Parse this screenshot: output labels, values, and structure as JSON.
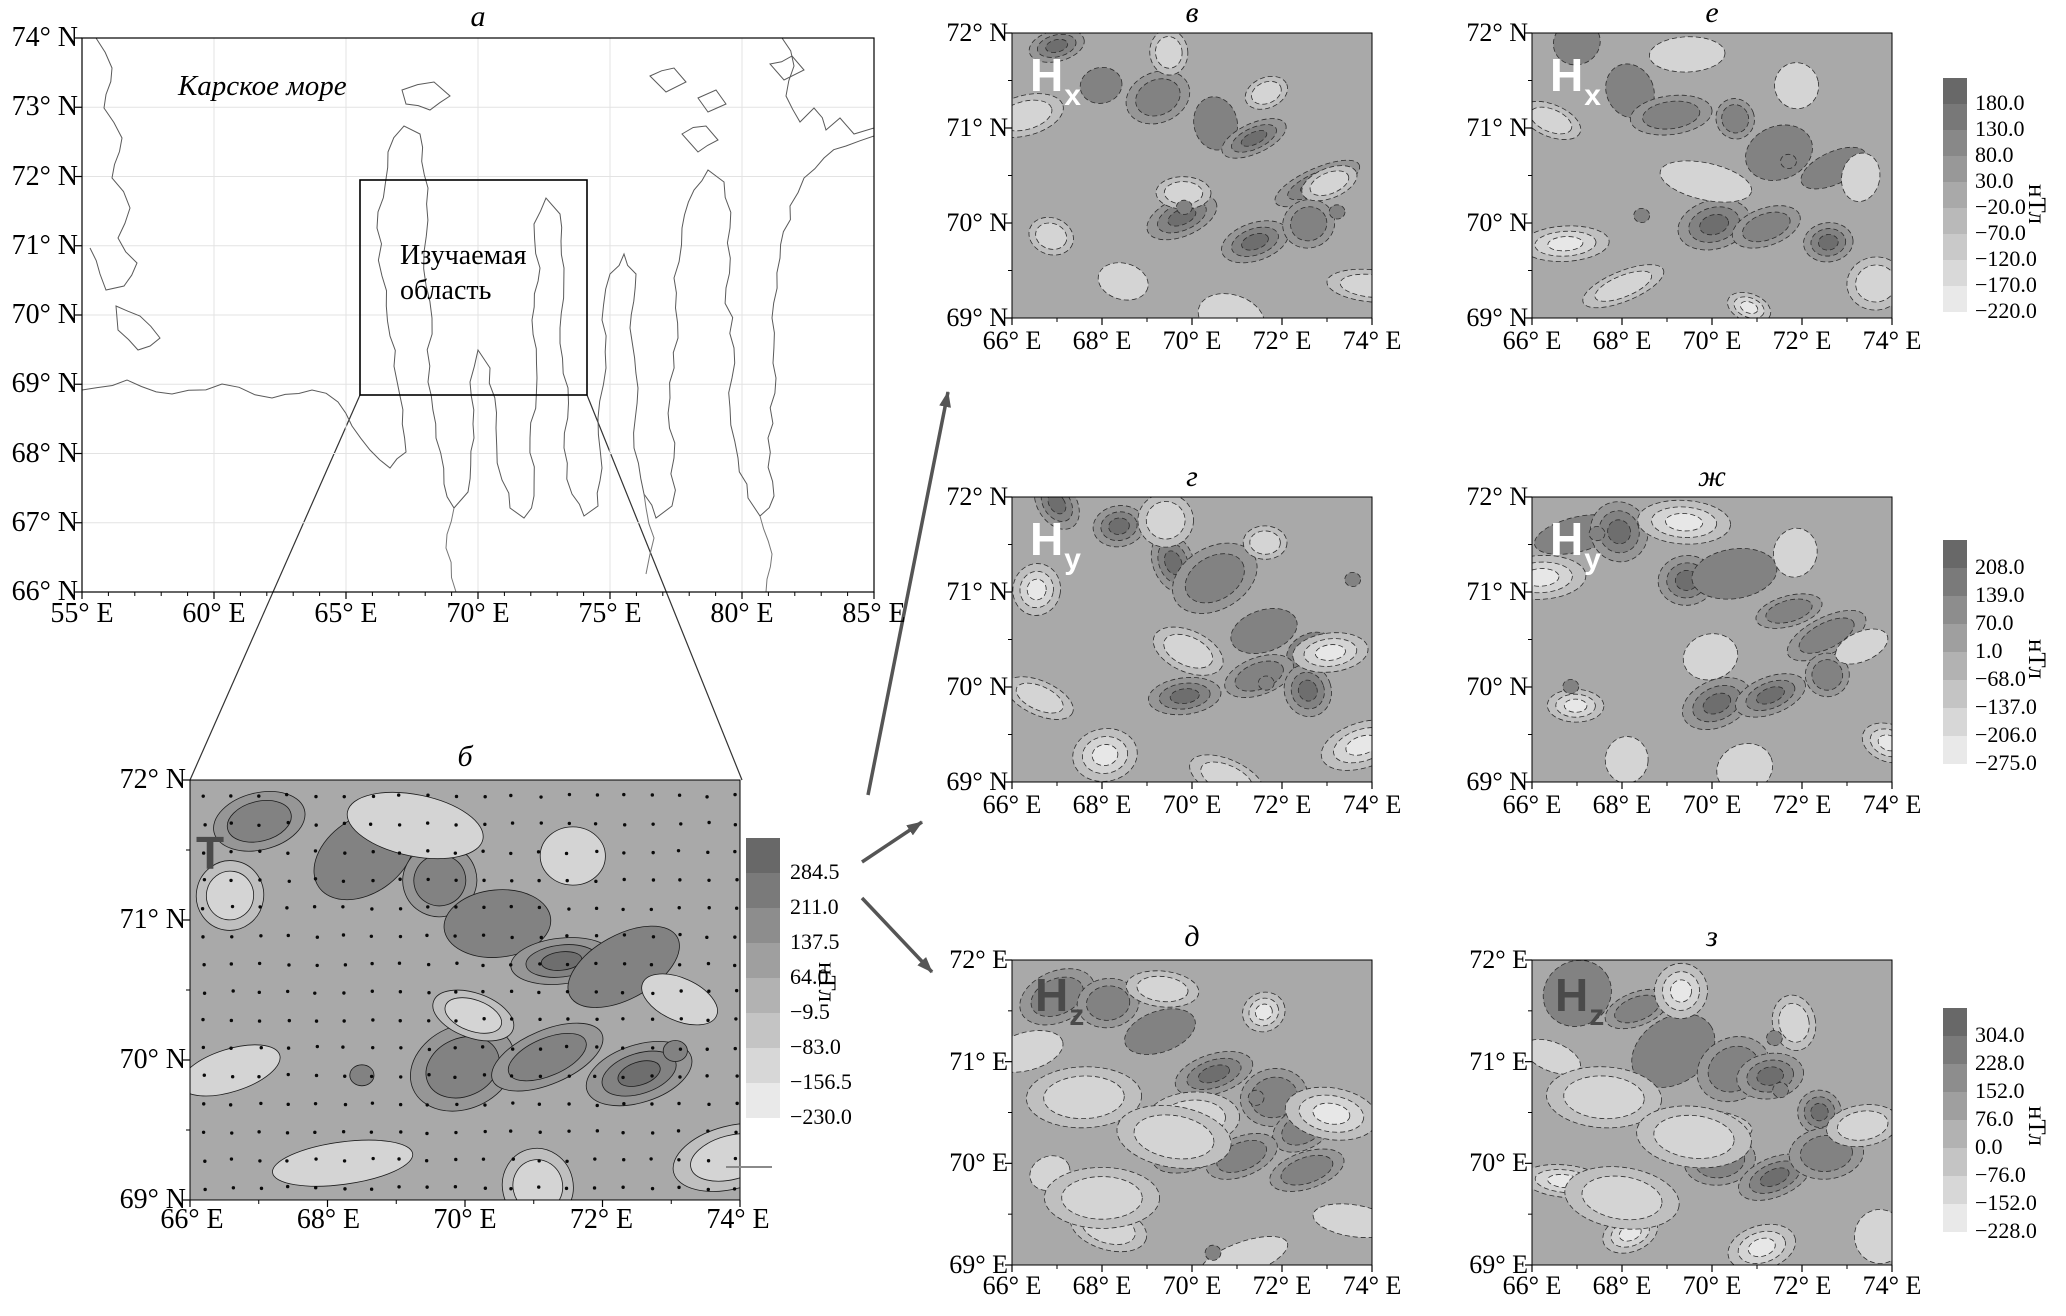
{
  "figure": {
    "caption_letters": [
      "а",
      "б",
      "в",
      "г",
      "д",
      "е",
      "ж",
      "з"
    ],
    "panels": {
      "a": {
        "title": "а",
        "sea_label": "Карское море",
        "study_area_line1": "Изучаемая",
        "study_area_line2": "область",
        "yticks": [
          "74° N",
          "73° N",
          "72° N",
          "71° N",
          "70° N",
          "69° N",
          "68° N",
          "67° N",
          "66° N"
        ],
        "xticks": [
          "55° E",
          "60° E",
          "65° E",
          "70° E",
          "75° E",
          "80° E",
          "85° E"
        ]
      },
      "b": {
        "title": "б",
        "field_label": "T",
        "yticks": [
          "72° N",
          "71° N",
          "70° N",
          "69° N"
        ],
        "xticks": [
          "66° E",
          "68° E",
          "70° E",
          "72° E",
          "74° E"
        ],
        "colorbar": {
          "values": [
            "284.5",
            "211.0",
            "137.5",
            "64.0",
            "−9.5",
            "−83.0",
            "−156.5",
            "−230.0"
          ],
          "unit": "нТл"
        }
      },
      "v": {
        "title": "в",
        "field_main": "H",
        "field_sub": "x",
        "yticks": [
          "72° N",
          "71° N",
          "70° N",
          "69° N"
        ],
        "xticks": [
          "66° E",
          "68° E",
          "70° E",
          "72° E",
          "74° E"
        ]
      },
      "g": {
        "title": "г",
        "field_main": "H",
        "field_sub": "y",
        "yticks": [
          "72° N",
          "71° N",
          "70° N",
          "69° N"
        ],
        "xticks": [
          "66° E",
          "68° E",
          "70° E",
          "72° E",
          "74° E"
        ]
      },
      "d": {
        "title": "д",
        "field_main": "H",
        "field_sub": "z",
        "yticks": [
          "72° E",
          "71° E",
          "70° E",
          "69° E"
        ],
        "xticks": [
          "66° E",
          "68° E",
          "70° E",
          "72° E",
          "74° E"
        ]
      },
      "e": {
        "title": "е",
        "field_main": "H",
        "field_sub": "x",
        "yticks": [
          "72° N",
          "71° N",
          "70° N",
          "69° N"
        ],
        "xticks": [
          "66° E",
          "68° E",
          "70° E",
          "72° E",
          "74° E"
        ],
        "colorbar": {
          "values": [
            "180.0",
            "130.0",
            "80.0",
            "30.0",
            "−20.0",
            "−70.0",
            "−120.0",
            "−170.0",
            "−220.0"
          ],
          "unit": "нТл"
        }
      },
      "zh": {
        "title": "ж",
        "field_main": "H",
        "field_sub": "y",
        "yticks": [
          "72° N",
          "71° N",
          "70° N",
          "69° N"
        ],
        "xticks": [
          "66° E",
          "68° E",
          "70° E",
          "72° E",
          "74° E"
        ],
        "colorbar": {
          "values": [
            "208.0",
            "139.0",
            "70.0",
            "1.0",
            "−68.0",
            "−137.0",
            "−206.0",
            "−275.0"
          ],
          "unit": "нТл"
        }
      },
      "z": {
        "title": "з",
        "field_main": "H",
        "field_sub": "z",
        "yticks": [
          "72° E",
          "71° E",
          "70° E",
          "69° E"
        ],
        "xticks": [
          "66° E",
          "68° E",
          "70° E",
          "72° E",
          "74° E"
        ],
        "colorbar": {
          "values": [
            "304.0",
            "228.0",
            "152.0",
            "76.0",
            "0.0",
            "−76.0",
            "−152.0",
            "−228.0"
          ],
          "unit": "нТл"
        }
      }
    }
  }
}
